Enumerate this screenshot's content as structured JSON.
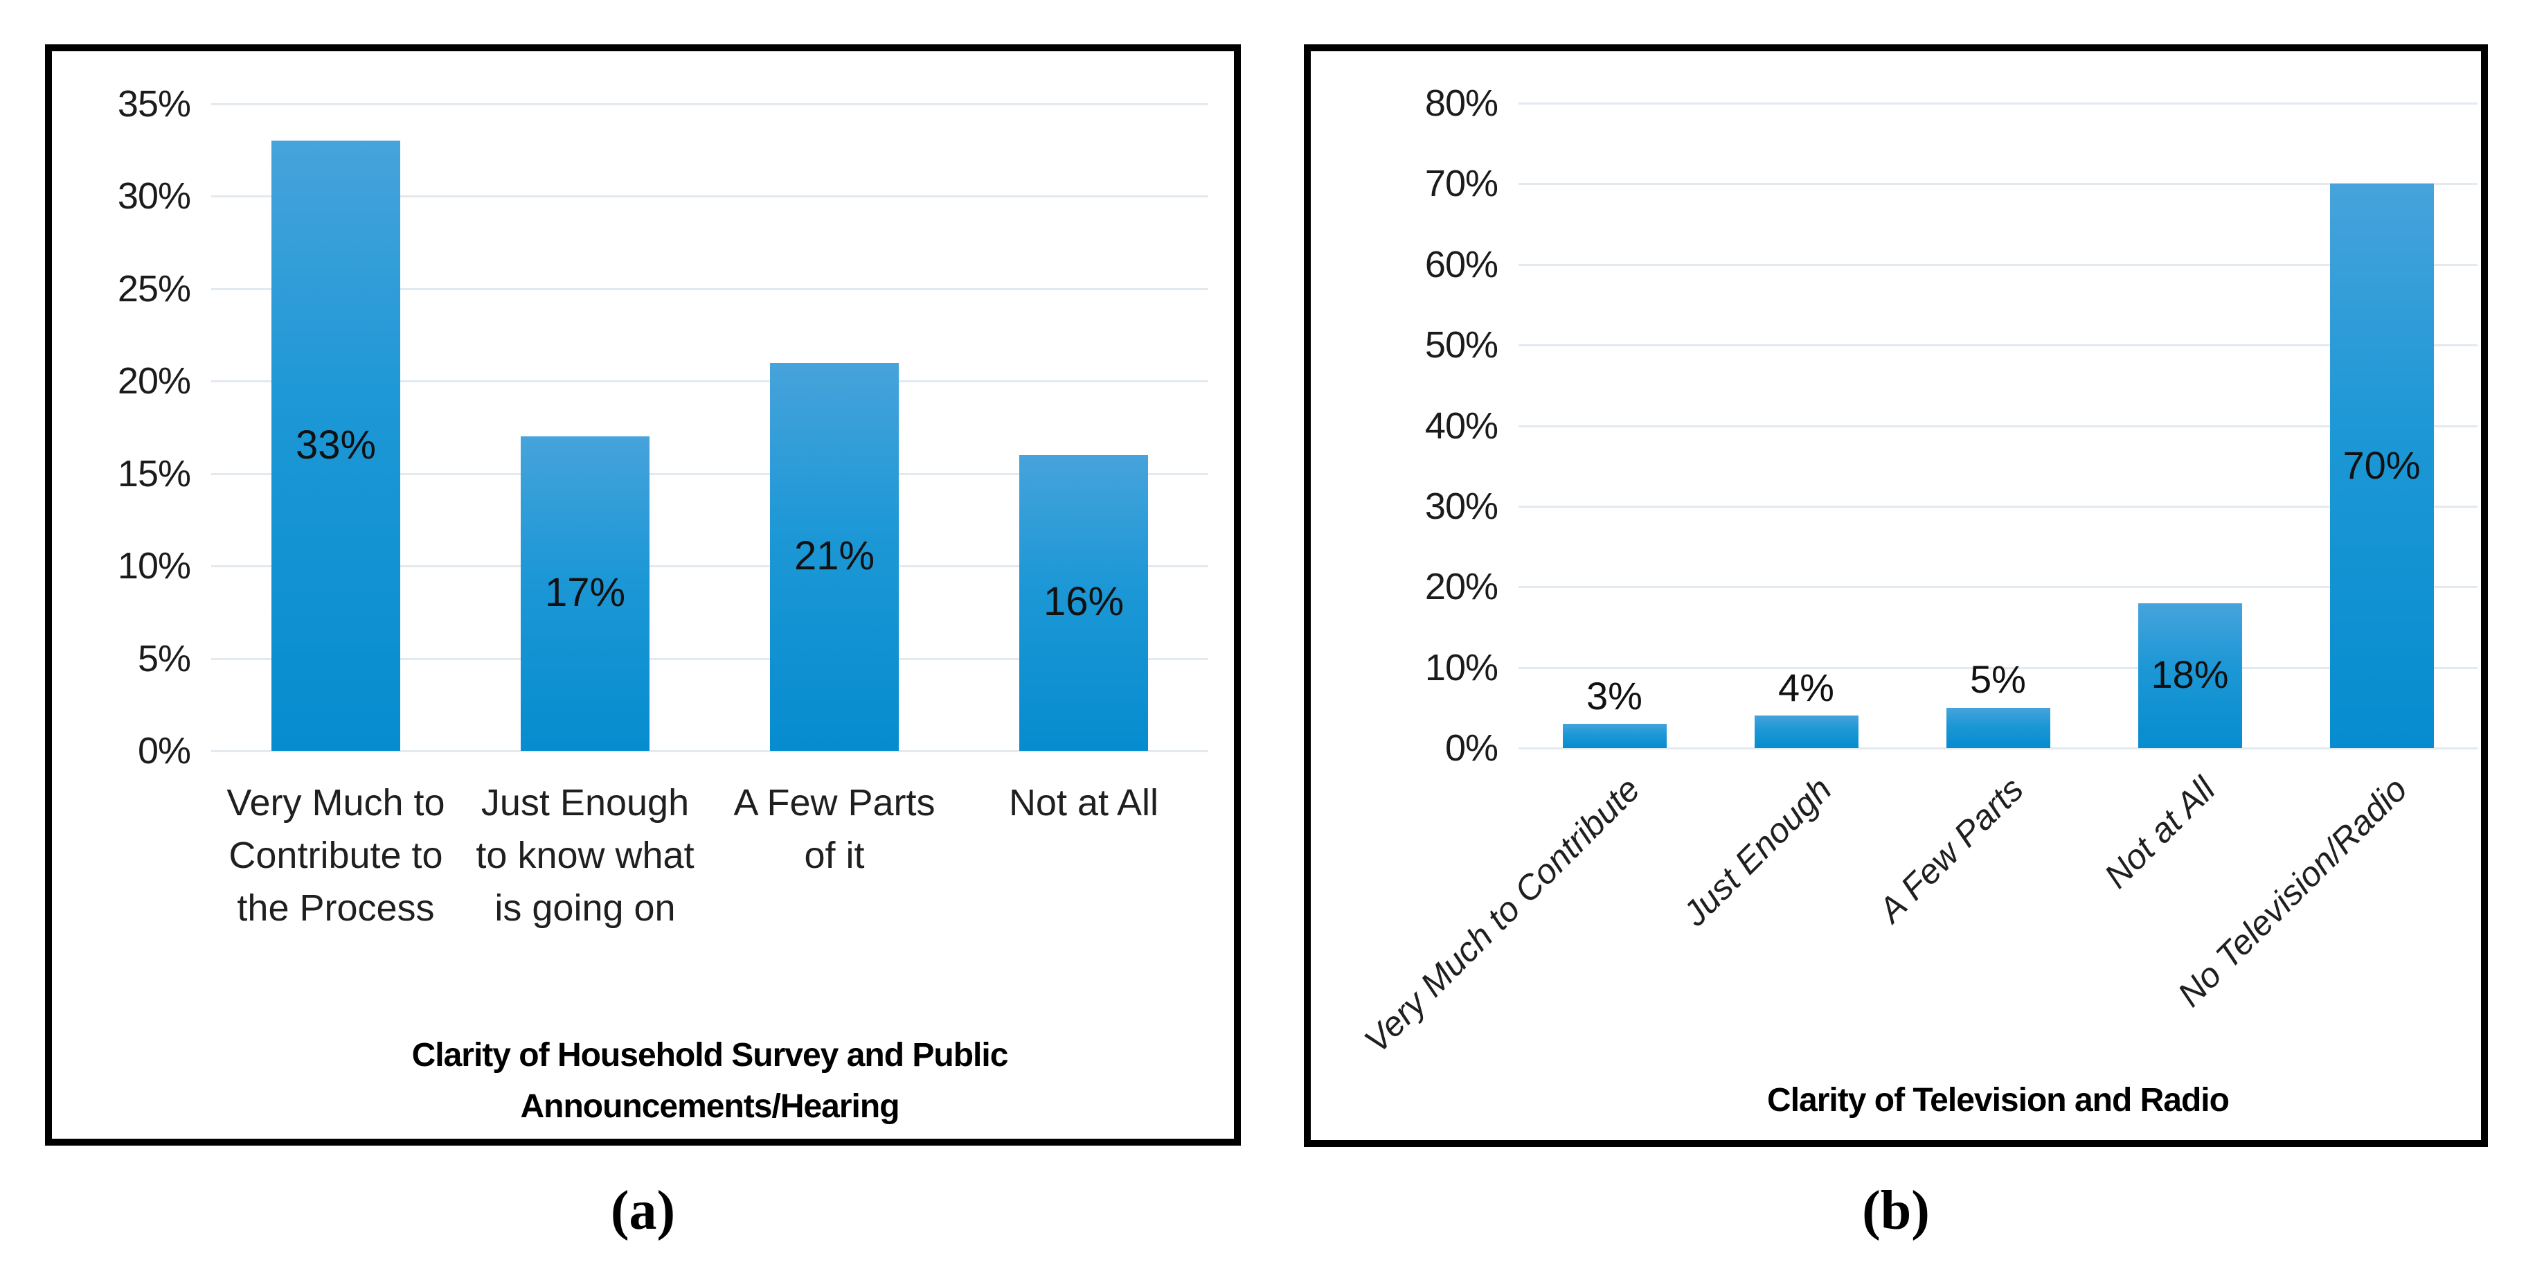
{
  "figure": {
    "captions": [
      {
        "label": "(a)"
      },
      {
        "label": "(b)"
      }
    ]
  },
  "colors": {
    "panel_border": "#000000",
    "gridline": "#e2e9ef",
    "bar_gradient_top": "#47a3db",
    "bar_gradient_mid": "#1e98d6",
    "bar_gradient_bottom": "#068ccf",
    "text": "#1a1a1a"
  },
  "chart_data": [
    {
      "panel": "a",
      "type": "bar",
      "title": "Clarity of Household Survey and Public Announcements/Hearing",
      "title_lines": [
        "Clarity of Household Survey and Public",
        "Announcements/Hearing"
      ],
      "categories": [
        "Very Much to Contribute to the Process",
        "Just Enough to know what is going on",
        "A Few Parts of it",
        "Not at All"
      ],
      "category_label_lines": [
        [
          "Very Much to",
          "Contribute to",
          "the Process"
        ],
        [
          "Just Enough",
          "to know what",
          "is going on"
        ],
        [
          "A Few Parts",
          "of it"
        ],
        [
          "Not at All"
        ]
      ],
      "values": [
        33,
        17,
        21,
        16
      ],
      "data_labels": [
        "33%",
        "17%",
        "21%",
        "16%"
      ],
      "data_label_placement": [
        "center",
        "center",
        "center",
        "center"
      ],
      "ylim": [
        0,
        35
      ],
      "ytick_values": [
        0,
        5,
        10,
        15,
        20,
        25,
        30,
        35
      ],
      "ytick_labels": [
        "0%",
        "5%",
        "10%",
        "15%",
        "20%",
        "25%",
        "30%",
        "35%"
      ],
      "grid": true,
      "legend": "none",
      "x_label_rotation_deg": 0,
      "x_label_style": "normal",
      "xlabel": "",
      "ylabel": ""
    },
    {
      "panel": "b",
      "type": "bar",
      "title": "Clarity of Television and Radio",
      "title_lines": [
        "Clarity of Television and Radio"
      ],
      "categories": [
        "Very Much to Contribute",
        "Just Enough",
        "A Few Parts",
        "Not at All",
        "No Television/Radio"
      ],
      "category_label_lines": [
        [
          "Very Much to Contribute"
        ],
        [
          "Just Enough"
        ],
        [
          "A Few Parts"
        ],
        [
          "Not at All"
        ],
        [
          "No Television/Radio"
        ]
      ],
      "values": [
        3,
        4,
        5,
        18,
        70
      ],
      "data_labels": [
        "3%",
        "4%",
        "5%",
        "18%",
        "70%"
      ],
      "data_label_placement": [
        "above",
        "above",
        "above",
        "center",
        "center"
      ],
      "ylim": [
        0,
        80
      ],
      "ytick_values": [
        0,
        10,
        20,
        30,
        40,
        50,
        60,
        70,
        80
      ],
      "ytick_labels": [
        "0%",
        "10%",
        "20%",
        "30%",
        "40%",
        "50%",
        "60%",
        "70%",
        "80%"
      ],
      "grid": true,
      "legend": "none",
      "x_label_rotation_deg": 45,
      "x_label_style": "italic",
      "xlabel": "",
      "ylabel": ""
    }
  ]
}
